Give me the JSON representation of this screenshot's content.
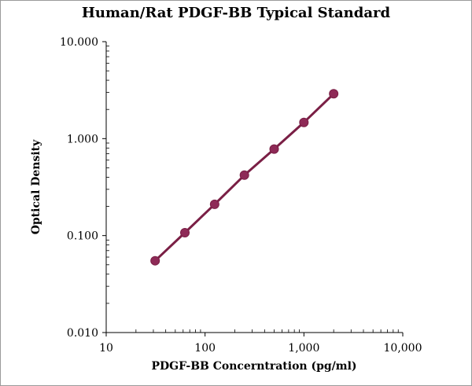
{
  "chart_data": {
    "type": "line",
    "title": "Human/Rat PDGF-BB Typical Standard",
    "xlabel": "PDGF-BB Concerntration (pg/ml)",
    "ylabel": "Optical Density",
    "x_scale": "log",
    "y_scale": "log",
    "xlim": [
      10,
      10000
    ],
    "ylim": [
      0.01,
      10
    ],
    "x_ticks": [
      {
        "value": 10,
        "label": "10"
      },
      {
        "value": 100,
        "label": "100"
      },
      {
        "value": 1000,
        "label": "1,000"
      },
      {
        "value": 10000,
        "label": "10,000"
      }
    ],
    "y_ticks": [
      {
        "value": 0.01,
        "label": "0.010"
      },
      {
        "value": 0.1,
        "label": "0.100"
      },
      {
        "value": 1,
        "label": "1.000"
      },
      {
        "value": 10,
        "label": "10.000"
      }
    ],
    "grid": false,
    "legend": "none",
    "series": [
      {
        "color": "#7a1f45",
        "marker_color": "#8e2a57",
        "points": [
          {
            "x": 31.25,
            "y": 0.055
          },
          {
            "x": 62.5,
            "y": 0.107
          },
          {
            "x": 125,
            "y": 0.21
          },
          {
            "x": 250,
            "y": 0.42
          },
          {
            "x": 500,
            "y": 0.78
          },
          {
            "x": 1000,
            "y": 1.47
          },
          {
            "x": 2000,
            "y": 2.9
          }
        ]
      }
    ]
  }
}
